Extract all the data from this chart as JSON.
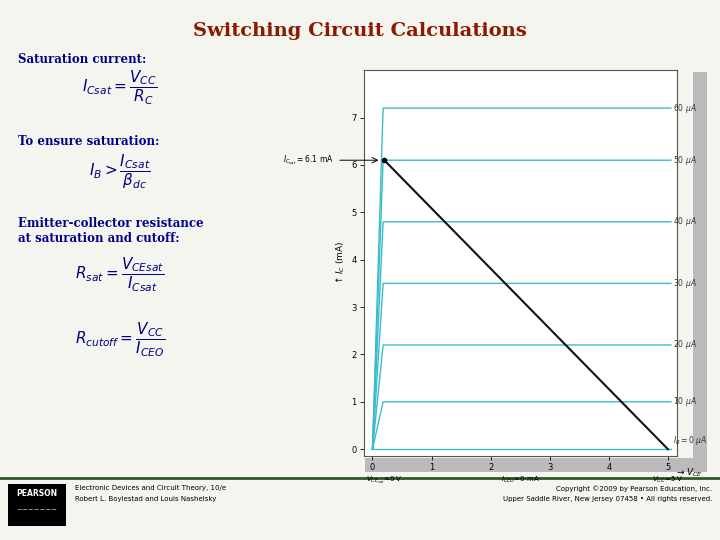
{
  "title": "Switching Circuit Calculations",
  "title_color": "#8B1A00",
  "title_fontsize": 14,
  "bg_color": "#F5F5F0",
  "left_text_color": "#00008B",
  "formula_color": "#000080",
  "section1_label": "Saturation current:",
  "section2_label": "To ensure saturation:",
  "section3_label": "Emitter-collector resistance\nat saturation and cutoff:",
  "footer_left_line1": "Electronic Devices and Circuit Theory, 10/e",
  "footer_left_line2": "Robert L. Boylestad and Louis Nashelsky",
  "footer_right_line1": "Copyright ©2009 by Pearson Education, Inc.",
  "footer_right_line2": "Upper Saddle River, New Jersey 07458 • All rights reserved.",
  "graph_bg": "#FFFFFF",
  "curve_color": "#3BBCCC",
  "load_line_color": "#111111",
  "ib_levels": [
    0,
    10,
    20,
    30,
    40,
    50,
    60
  ],
  "ic_sat_levels": [
    0.0,
    1.0,
    2.2,
    3.5,
    4.8,
    6.1,
    7.2
  ],
  "vcc": 5.0,
  "ic_sat": 6.1,
  "vce_sat": 0.2,
  "footer_bar_color": "#2D5A27",
  "shadow_color": "#BBBBBB"
}
